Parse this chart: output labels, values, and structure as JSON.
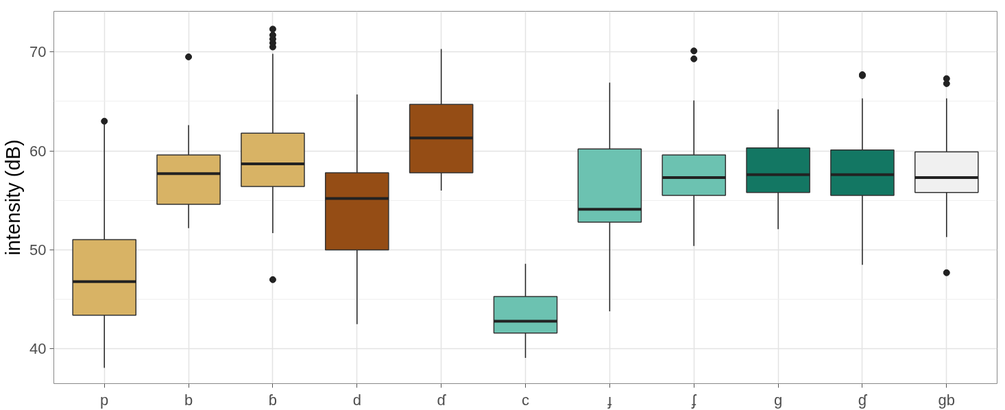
{
  "chart_data": {
    "type": "box",
    "ylabel": "intensity (dB)",
    "categories": [
      "p",
      "b",
      "ɓ",
      "d",
      "ɗ",
      "c",
      "ɟ",
      "ʄ",
      "g",
      "ɠ",
      "gb"
    ],
    "colors": [
      "#d8b365",
      "#d8b365",
      "#d8b365",
      "#954d15",
      "#954d15",
      "#6cc2b1",
      "#6cc2b1",
      "#6cc2b1",
      "#137763",
      "#137763",
      "#f0f0f0"
    ],
    "boxes": [
      {
        "low": 38.1,
        "q1": 43.4,
        "median": 46.8,
        "q3": 51.05,
        "high": 62.7,
        "outliers": [
          63.0
        ]
      },
      {
        "low": 52.2,
        "q1": 54.6,
        "median": 57.7,
        "q3": 59.6,
        "high": 62.6,
        "outliers": [
          69.5
        ]
      },
      {
        "low": 51.7,
        "q1": 56.4,
        "median": 58.7,
        "q3": 61.8,
        "high": 69.8,
        "outliers": [
          47.0,
          70.5,
          70.9,
          71.3,
          71.7,
          72.3
        ]
      },
      {
        "low": 42.5,
        "q1": 50.0,
        "median": 55.2,
        "q3": 57.8,
        "high": 65.7
      },
      {
        "low": 56.0,
        "q1": 57.8,
        "median": 61.3,
        "q3": 64.7,
        "high": 70.3
      },
      {
        "low": 39.1,
        "q1": 41.6,
        "median": 42.8,
        "q3": 45.3,
        "high": 48.6
      },
      {
        "low": 43.8,
        "q1": 52.8,
        "median": 54.1,
        "q3": 60.2,
        "high": 66.9
      },
      {
        "low": 50.4,
        "q1": 55.5,
        "median": 57.3,
        "q3": 59.6,
        "high": 65.1,
        "outliers": [
          69.3,
          70.1
        ]
      },
      {
        "low": 52.1,
        "q1": 55.8,
        "median": 57.6,
        "q3": 60.3,
        "high": 64.2
      },
      {
        "low": 48.5,
        "q1": 55.5,
        "median": 57.6,
        "q3": 60.1,
        "high": 65.3,
        "outliers": [
          67.6,
          67.7
        ]
      },
      {
        "low": 51.3,
        "q1": 55.8,
        "median": 57.3,
        "q3": 59.9,
        "high": 65.3,
        "outliers": [
          47.7,
          66.8,
          67.3
        ]
      }
    ],
    "ylim": [
      36.5,
      74.1
    ],
    "yticks": [
      40,
      50,
      60,
      70
    ],
    "grid": true
  }
}
